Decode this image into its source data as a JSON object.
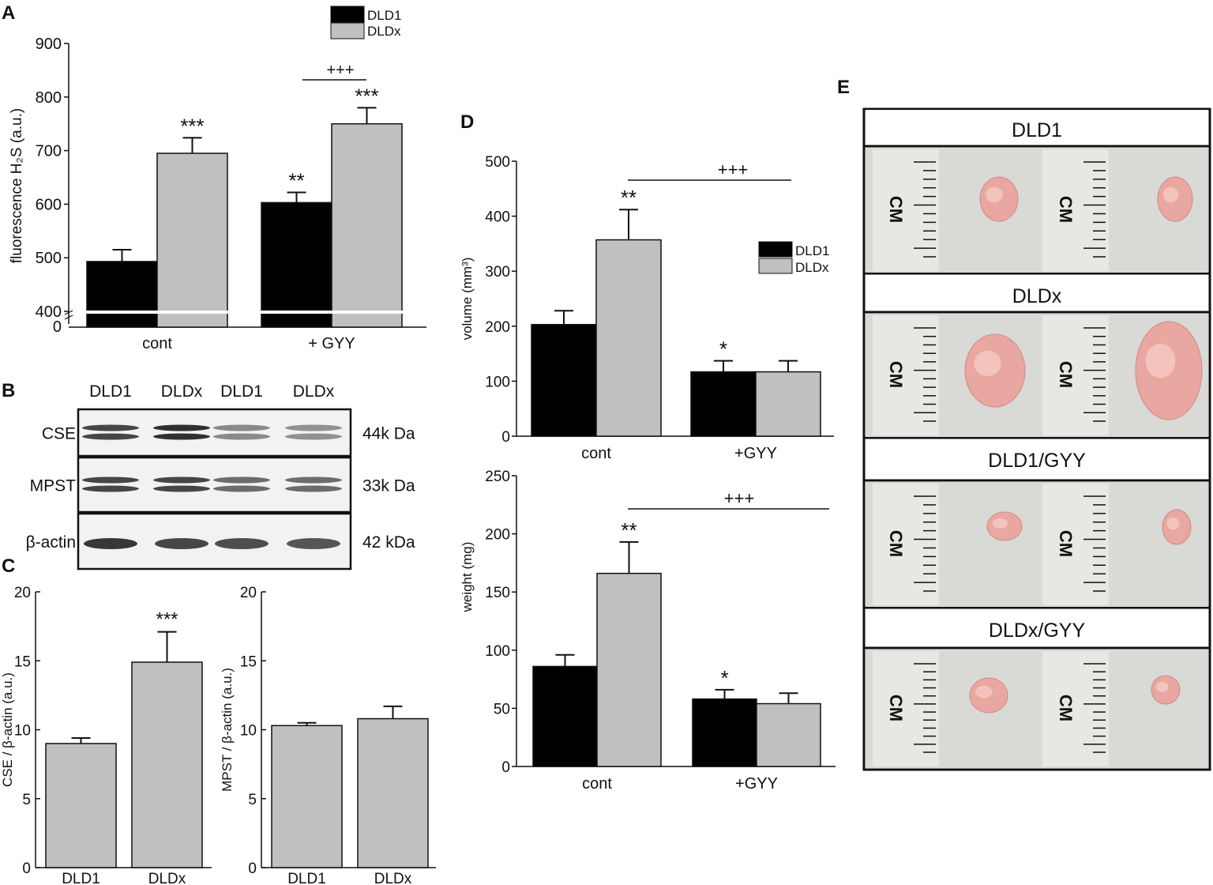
{
  "panels": {
    "A": "A",
    "B": "B",
    "C": "C",
    "D": "D",
    "E": "E"
  },
  "colors": {
    "dld1": "#000000",
    "dldx": "#c0c0c0"
  },
  "chart_data": [
    {
      "type": "bar",
      "panel": "A",
      "ylabel": "fluorescence H₂S (a.u.)",
      "categories": [
        "cont",
        "+ GYY"
      ],
      "series": [
        {
          "name": "DLD1",
          "values": [
            493,
            603
          ],
          "errors": [
            22,
            19
          ]
        },
        {
          "name": "DLDx",
          "values": [
            695,
            750
          ],
          "errors": [
            29,
            30
          ]
        }
      ],
      "ylim": [
        400,
        900
      ],
      "axis_break": true,
      "yticks": [
        "400",
        "500",
        "600",
        "700",
        "800",
        "900"
      ],
      "ytick_zero": "0",
      "significance": [
        {
          "group": 0,
          "series": 1,
          "label": "***"
        },
        {
          "group": 1,
          "series": 0,
          "label": "**"
        },
        {
          "group": 1,
          "series": 1,
          "label": "***"
        }
      ],
      "bracket_label": "+++",
      "legend": "top-right"
    },
    {
      "type": "table",
      "panel": "B",
      "lane_labels": [
        "DLD1",
        "DLDx",
        "DLD1",
        "DLDx"
      ],
      "rows": [
        {
          "name": "CSE",
          "size": "44k Da",
          "intensity": [
            0.8,
            0.95,
            0.35,
            0.3
          ]
        },
        {
          "name": "MPST",
          "size": "33k Da",
          "intensity": [
            0.8,
            0.8,
            0.55,
            0.55
          ]
        },
        {
          "name": "β-actin",
          "size": "42 kDa",
          "intensity": [
            0.9,
            0.8,
            0.75,
            0.7
          ]
        }
      ]
    },
    {
      "type": "bar",
      "panel": "C",
      "ylabel": "CSE / β-actin (a.u.)",
      "categories": [
        "DLD1",
        "DLDx"
      ],
      "values": [
        9.0,
        14.9
      ],
      "errors": [
        0.4,
        2.2
      ],
      "ylim": [
        0,
        20
      ],
      "yticks": [
        "0",
        "5",
        "10",
        "15",
        "20"
      ],
      "significance": [
        {
          "index": 1,
          "label": "***"
        }
      ]
    },
    {
      "type": "bar",
      "panel": "C",
      "ylabel": "MPST / β-actin (a.u.)",
      "categories": [
        "DLD1",
        "DLDx"
      ],
      "values": [
        10.3,
        10.8
      ],
      "errors": [
        0.2,
        0.9
      ],
      "ylim": [
        0,
        20
      ],
      "yticks": [
        "0",
        "5",
        "10",
        "15",
        "20"
      ]
    },
    {
      "type": "bar",
      "panel": "D",
      "ylabel": "volume (mm³)",
      "categories": [
        "cont",
        "+GYY"
      ],
      "series": [
        {
          "name": "DLD1",
          "values": [
            203,
            117
          ],
          "errors": [
            25,
            20
          ]
        },
        {
          "name": "DLDx",
          "values": [
            357,
            117
          ],
          "errors": [
            55,
            20
          ]
        }
      ],
      "ylim": [
        0,
        500
      ],
      "yticks": [
        "0",
        "100",
        "200",
        "300",
        "400",
        "500"
      ],
      "significance": [
        {
          "group": 0,
          "series": 1,
          "label": "**"
        },
        {
          "group": 1,
          "series": 0,
          "label": "*"
        }
      ],
      "bracket_label": "+++",
      "legend": "right"
    },
    {
      "type": "bar",
      "panel": "D",
      "ylabel": "weight (mg)",
      "categories": [
        "cont",
        "+GYY"
      ],
      "series": [
        {
          "name": "DLD1",
          "values": [
            86,
            58
          ],
          "errors": [
            10,
            8
          ]
        },
        {
          "name": "DLDx",
          "values": [
            166,
            54
          ],
          "errors": [
            27,
            9
          ]
        }
      ],
      "ylim": [
        0,
        250
      ],
      "yticks": [
        "0",
        "50",
        "100",
        "150",
        "200",
        "250"
      ],
      "significance": [
        {
          "group": 0,
          "series": 1,
          "label": "**"
        },
        {
          "group": 1,
          "series": 0,
          "label": "*"
        }
      ],
      "bracket_label": "+++"
    }
  ],
  "panel_e": {
    "rows": [
      {
        "title": "DLD1"
      },
      {
        "title": "DLDx"
      },
      {
        "title": "DLD1/GYY"
      },
      {
        "title": "DLDx/GYY"
      }
    ],
    "ruler_text": "CM"
  }
}
